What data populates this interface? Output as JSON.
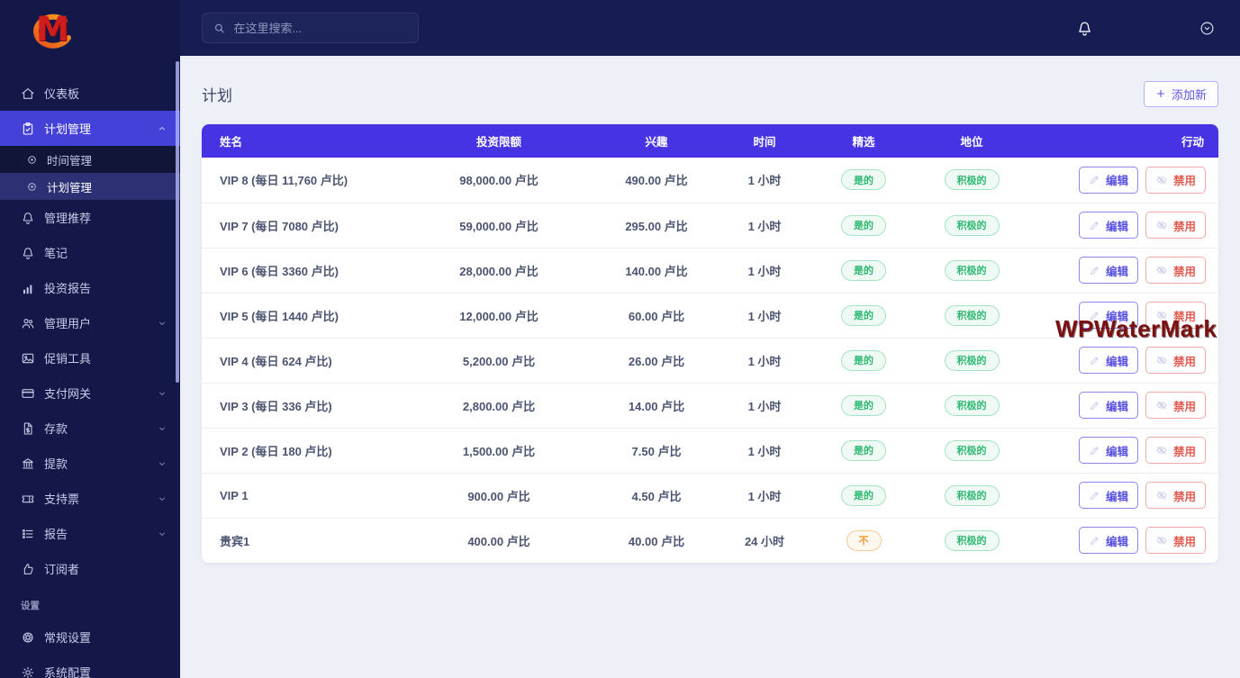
{
  "brand": {
    "logo_text": "M"
  },
  "topbar": {
    "search_placeholder": "在这里搜索..."
  },
  "sidebar": {
    "items": [
      {
        "icon": "home-icon",
        "label": "仪表板"
      },
      {
        "icon": "clipboard-icon",
        "label": "计划管理",
        "active": true,
        "chevron": "up",
        "children": [
          {
            "icon": "dot-circle-icon",
            "label": "时间管理"
          },
          {
            "icon": "dot-circle-icon",
            "label": "计划管理",
            "active": true
          }
        ]
      },
      {
        "icon": "bell-icon",
        "label": "管理推荐"
      },
      {
        "icon": "bell-icon",
        "label": "笔记"
      },
      {
        "icon": "bar-chart-icon",
        "label": "投资报告"
      },
      {
        "icon": "users-icon",
        "label": "管理用户",
        "chevron": "down"
      },
      {
        "icon": "image-icon",
        "label": "促销工具"
      },
      {
        "icon": "credit-card-icon",
        "label": "支付网关",
        "chevron": "down"
      },
      {
        "icon": "file-dollar-icon",
        "label": "存款",
        "chevron": "down"
      },
      {
        "icon": "bank-icon",
        "label": "提款",
        "chevron": "down"
      },
      {
        "icon": "ticket-icon",
        "label": "支持票",
        "chevron": "down"
      },
      {
        "icon": "list-icon",
        "label": "报告",
        "chevron": "down"
      },
      {
        "icon": "thumbs-up-icon",
        "label": "订阅者"
      }
    ],
    "section_label": "设置",
    "settings_items": [
      {
        "icon": "wheel-icon",
        "label": "常规设置"
      },
      {
        "icon": "gear-icon",
        "label": "系统配置"
      }
    ]
  },
  "page": {
    "title": "计划",
    "add_button_label": "添加新"
  },
  "table": {
    "headers": [
      "姓名",
      "投资限额",
      "兴趣",
      "时间",
      "精选",
      "地位",
      "行动"
    ],
    "edit_label": "编辑",
    "disable_label": "禁用",
    "rows": [
      {
        "name": "VIP 8 (每日 11,760 卢比)",
        "invest": "98,000.00 卢比",
        "interest": "490.00 卢比",
        "time": "1 小时",
        "featured": "是的",
        "featured_type": "yes",
        "status": "积极的"
      },
      {
        "name": "VIP 7 (每日 7080 卢比)",
        "invest": "59,000.00 卢比",
        "interest": "295.00 卢比",
        "time": "1 小时",
        "featured": "是的",
        "featured_type": "yes",
        "status": "积极的"
      },
      {
        "name": "VIP 6 (每日 3360 卢比)",
        "invest": "28,000.00 卢比",
        "interest": "140.00 卢比",
        "time": "1 小时",
        "featured": "是的",
        "featured_type": "yes",
        "status": "积极的"
      },
      {
        "name": "VIP 5 (每日 1440 卢比)",
        "invest": "12,000.00 卢比",
        "interest": "60.00 卢比",
        "time": "1 小时",
        "featured": "是的",
        "featured_type": "yes",
        "status": "积极的"
      },
      {
        "name": "VIP 4 (每日 624 卢比)",
        "invest": "5,200.00 卢比",
        "interest": "26.00 卢比",
        "time": "1 小时",
        "featured": "是的",
        "featured_type": "yes",
        "status": "积极的"
      },
      {
        "name": "VIP 3 (每日 336 卢比)",
        "invest": "2,800.00 卢比",
        "interest": "14.00 卢比",
        "time": "1 小时",
        "featured": "是的",
        "featured_type": "yes",
        "status": "积极的"
      },
      {
        "name": "VIP 2 (每日 180 卢比)",
        "invest": "1,500.00 卢比",
        "interest": "7.50 卢比",
        "time": "1 小时",
        "featured": "是的",
        "featured_type": "yes",
        "status": "积极的"
      },
      {
        "name": "VIP 1",
        "invest": "900.00 卢比",
        "interest": "4.50 卢比",
        "time": "1 小时",
        "featured": "是的",
        "featured_type": "yes",
        "status": "积极的"
      },
      {
        "name": "贵宾1",
        "invest": "400.00 卢比",
        "interest": "40.00 卢比",
        "time": "24 小时",
        "featured": "不",
        "featured_type": "no",
        "status": "积极的"
      }
    ]
  },
  "watermark": "WPWaterMark",
  "colors": {
    "sidebar_bg": "#141848",
    "topbar_bg": "#171d52",
    "active_item": "#4441d8",
    "table_header": "#4634e4",
    "content_bg": "#eef0f8",
    "pill_green": "#2eb872",
    "pill_orange": "#ef9834",
    "edit_accent": "#5a52e0",
    "disable_accent": "#e25c52",
    "watermark": "#7c0f10"
  }
}
